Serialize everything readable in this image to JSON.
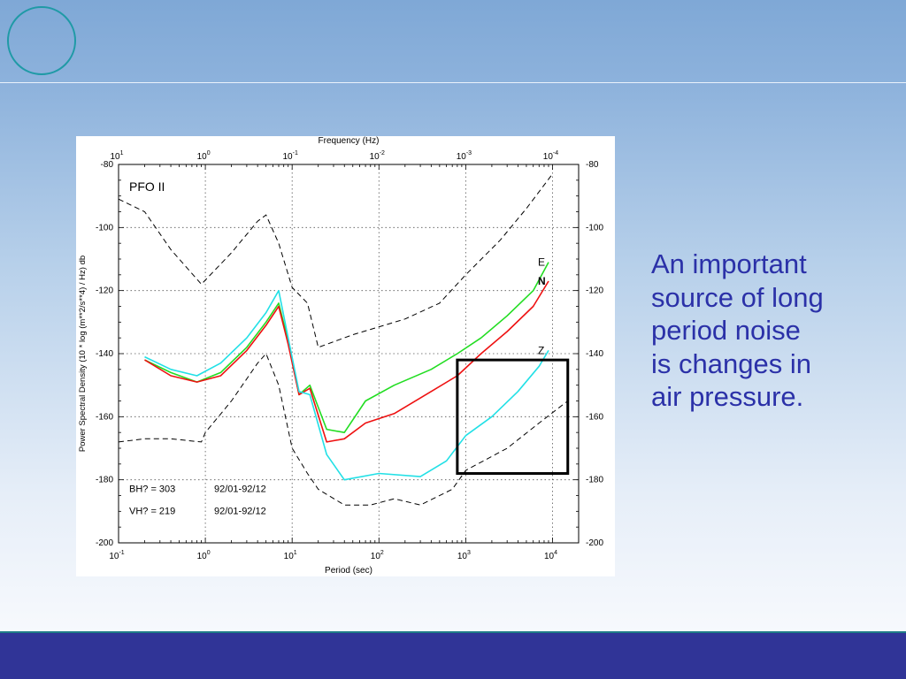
{
  "slide": {
    "caption": "An important\nsource of long\nperiod noise\nis changes in\nair pressure."
  },
  "colors": {
    "caption": "#2b31a8",
    "footer": "#303497",
    "accent_circle": "#1f9aa6",
    "series_E": "#22dd22",
    "series_N": "#ee1111",
    "series_Z": "#22e0e6"
  },
  "icons": [
    "circle-ornament"
  ],
  "chart_data": {
    "type": "line",
    "title": "PFO  II",
    "xlabel": "Period (sec)",
    "ylabel": "Power Spectral Density (10 * log (m**2/s**4) / Hz) db",
    "top_label": "Frequency (Hz)",
    "xscale": "log",
    "xlim": [
      0.1,
      20000
    ],
    "ylim": [
      -200,
      -80
    ],
    "grid": true,
    "x_ticks": [
      "10-1",
      "100",
      "101",
      "102",
      "103",
      "104"
    ],
    "top_ticks": [
      "101",
      "100",
      "10-1",
      "10-2",
      "10-3",
      "10-4"
    ],
    "y_ticks": [
      "-80",
      "-100",
      "-120",
      "-140",
      "-160",
      "-180",
      "-200"
    ],
    "annotations": [
      "BH? = 303",
      "92/01-92/12",
      "VH? = 219",
      "92/01-92/12"
    ],
    "series": [
      {
        "name": "E",
        "x": [
          0.2,
          0.4,
          0.8,
          1.5,
          3,
          5,
          7,
          9,
          12,
          16,
          25,
          40,
          70,
          150,
          400,
          800,
          1500,
          3000,
          6000,
          9000
        ],
        "y": [
          -142,
          -146,
          -149,
          -146,
          -138,
          -130,
          -124,
          -136,
          -153,
          -150,
          -164,
          -165,
          -155,
          -150,
          -145,
          -140,
          -135,
          -128,
          -120,
          -111
        ]
      },
      {
        "name": "N",
        "x": [
          0.2,
          0.4,
          0.8,
          1.5,
          3,
          5,
          7,
          9,
          12,
          16,
          25,
          40,
          70,
          150,
          400,
          800,
          1500,
          3000,
          6000,
          9000
        ],
        "y": [
          -142,
          -147,
          -149,
          -147,
          -139,
          -131,
          -125,
          -137,
          -153,
          -151,
          -168,
          -167,
          -162,
          -159,
          -152,
          -147,
          -140,
          -133,
          -125,
          -117
        ]
      },
      {
        "name": "Z",
        "x": [
          0.2,
          0.4,
          0.8,
          1.5,
          3,
          5,
          7,
          9,
          12,
          16,
          25,
          40,
          100,
          300,
          600,
          1000,
          2000,
          4000,
          7000,
          9000
        ],
        "y": [
          -141,
          -145,
          -147,
          -143,
          -135,
          -127,
          -120,
          -135,
          -152,
          -153,
          -172,
          -180,
          -178,
          -179,
          -174,
          -166,
          -160,
          -152,
          -144,
          -139
        ]
      },
      {
        "x": [
          0.1,
          0.2,
          0.4,
          0.9,
          2,
          4,
          5,
          7,
          10,
          15,
          20,
          50,
          200,
          500,
          1000,
          2500,
          5000,
          10000
        ],
        "y": [
          -91,
          -95,
          -107,
          -118,
          -108,
          -98,
          -96,
          -105,
          -119,
          -124,
          -138,
          -134,
          -129,
          -124,
          -115,
          -104,
          -94,
          -83
        ]
      },
      {
        "x": [
          0.1,
          0.2,
          0.4,
          0.9,
          1,
          2,
          4,
          5,
          7,
          10,
          15,
          20,
          40,
          80,
          150,
          300,
          700,
          1000,
          3000,
          7000,
          15000
        ],
        "y": [
          -168,
          -167,
          -167,
          -168,
          -165,
          -155,
          -143,
          -140,
          -150,
          -170,
          -178,
          -183,
          -188,
          -188,
          -186,
          -188,
          -183,
          -177,
          -170,
          -162,
          -155
        ]
      }
    ],
    "series_labels": [
      "E",
      "N",
      "Z"
    ],
    "highlight_box": {
      "x": [
        800,
        15000
      ],
      "y": [
        -142,
        -178
      ]
    }
  }
}
